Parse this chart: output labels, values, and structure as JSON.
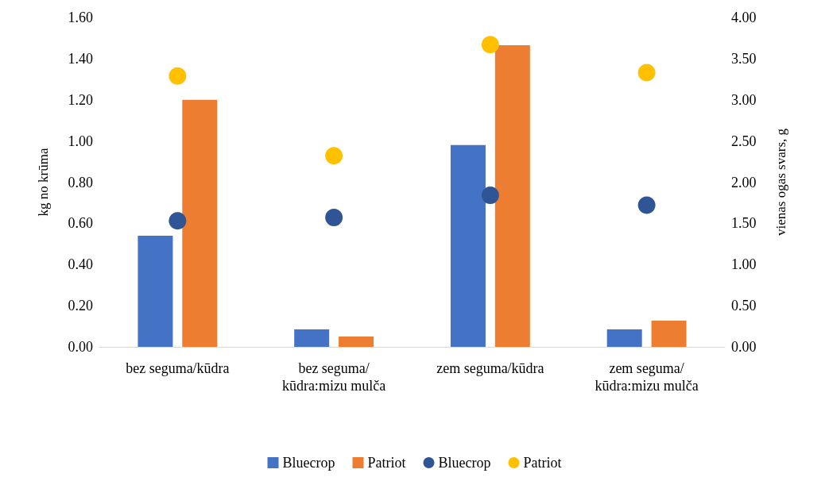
{
  "chart_data": {
    "type": "bar",
    "ylabel": "kg no krūma",
    "y2label": "vienas ogas svars, g",
    "categories": [
      "bez seguma/kūdra",
      "bez seguma/kūdra:mizu mulča",
      "zem seguma/kūdra",
      "zem seguma/kūdra:mizu mulča"
    ],
    "series": [
      {
        "name": "Bluecrop",
        "color": "#4472c4",
        "values": [
          0.54,
          0.085,
          0.98,
          0.085
        ]
      },
      {
        "name": "Patriot",
        "color": "#ed7d31",
        "values": [
          1.2,
          0.05,
          1.465,
          0.127
        ]
      },
      {
        "name": "Bluecrop",
        "type": "scatter",
        "axis": "y2",
        "color": "#2f5597",
        "x": [
          "bez seguma/kūdra",
          "bez seguma/kūdra:mizu mulča",
          "zem seguma/kūdra",
          "zem seguma/kūdra:mizu mulča"
        ],
        "values": [
          1.53,
          1.57,
          1.84,
          1.72
        ]
      },
      {
        "name": "Patriot",
        "type": "scatter",
        "axis": "y2",
        "color": "#ffc000",
        "x": [
          "bez seguma/kūdra",
          "bez seguma/kūdra:mizu mulča",
          "zem seguma/kūdra",
          "zem seguma/kūdra:mizu mulča"
        ],
        "values": [
          3.29,
          2.32,
          3.67,
          3.33
        ]
      }
    ],
    "ylim": [
      0,
      1.6
    ],
    "yticks": [
      {
        "value": 0,
        "label": "0.00"
      },
      {
        "value": 0.2,
        "label": "0.20"
      },
      {
        "value": 0.4,
        "label": "0.40"
      },
      {
        "value": 0.6,
        "label": "0.60"
      },
      {
        "value": 0.8,
        "label": "0.80"
      },
      {
        "value": 1,
        "label": "1.00"
      },
      {
        "value": 1.2,
        "label": "1.20"
      },
      {
        "value": 1.4,
        "label": "1.40"
      },
      {
        "value": 1.6,
        "label": "1.60"
      }
    ],
    "y2lim": [
      0,
      4
    ],
    "y2ticks": [
      {
        "value": 0,
        "label": "0.00"
      },
      {
        "value": 0.5,
        "label": "0.50"
      },
      {
        "value": 1,
        "label": "1.00"
      },
      {
        "value": 1.5,
        "label": "1.50"
      },
      {
        "value": 2,
        "label": "2.00"
      },
      {
        "value": 2.5,
        "label": "2.50"
      },
      {
        "value": 3,
        "label": "3.00"
      },
      {
        "value": 3.5,
        "label": "3.50"
      },
      {
        "value": 4,
        "label": "4.00"
      }
    ],
    "grid": false,
    "legend": "bottom",
    "marker": "circle"
  }
}
